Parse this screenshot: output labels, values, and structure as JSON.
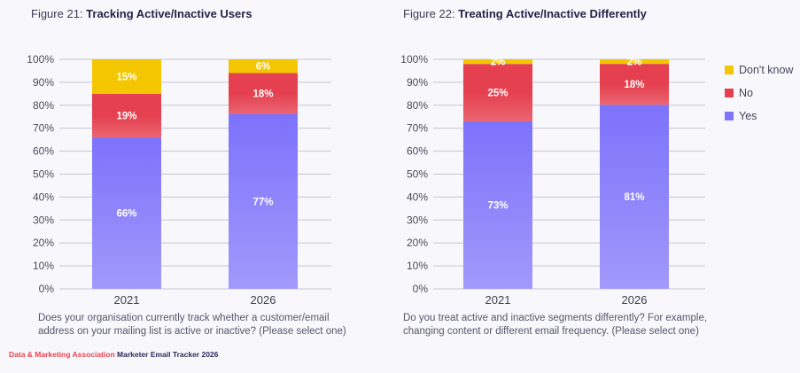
{
  "colors": {
    "Don't know": "#f3c600",
    "No": "#e5404f",
    "Yes": "#8176fb"
  },
  "chart_data": [
    {
      "type": "bar",
      "stacked": true,
      "figure_label": "Figure 21:",
      "title": "Tracking Active/Inactive Users",
      "categories": [
        "2021",
        "2026"
      ],
      "series": [
        {
          "name": "Yes",
          "values": [
            66,
            77
          ]
        },
        {
          "name": "No",
          "values": [
            19,
            18
          ]
        },
        {
          "name": "Don't know",
          "values": [
            15,
            6
          ]
        }
      ],
      "yticks": [
        "0%",
        "10%",
        "20%",
        "30%",
        "40%",
        "50%",
        "60%",
        "70%",
        "80%",
        "90%",
        "100%"
      ],
      "ylim": [
        0,
        100
      ],
      "grid": true,
      "question": "Does your organisation currently track whether a customer/email address on your mailing list is active or inactive? (Please select one)"
    },
    {
      "type": "bar",
      "stacked": true,
      "figure_label": "Figure 22:",
      "title": "Treating Active/Inactive Differently",
      "categories": [
        "2021",
        "2026"
      ],
      "series": [
        {
          "name": "Yes",
          "values": [
            73,
            81
          ]
        },
        {
          "name": "No",
          "values": [
            25,
            18
          ]
        },
        {
          "name": "Don't know",
          "values": [
            2,
            2
          ]
        }
      ],
      "yticks": [
        "0%",
        "10%",
        "20%",
        "30%",
        "40%",
        "50%",
        "60%",
        "70%",
        "80%",
        "90%",
        "100%"
      ],
      "ylim": [
        0,
        100
      ],
      "grid": true,
      "legend": "right",
      "question": "Do you treat active and inactive segments differently? For example, changing content or different email frequency. (Please select one)"
    }
  ],
  "legend": [
    "Don't know",
    "No",
    "Yes"
  ],
  "footer": {
    "org": "Data & Marketing Association",
    "report": "Marketer Email Tracker 2026"
  }
}
